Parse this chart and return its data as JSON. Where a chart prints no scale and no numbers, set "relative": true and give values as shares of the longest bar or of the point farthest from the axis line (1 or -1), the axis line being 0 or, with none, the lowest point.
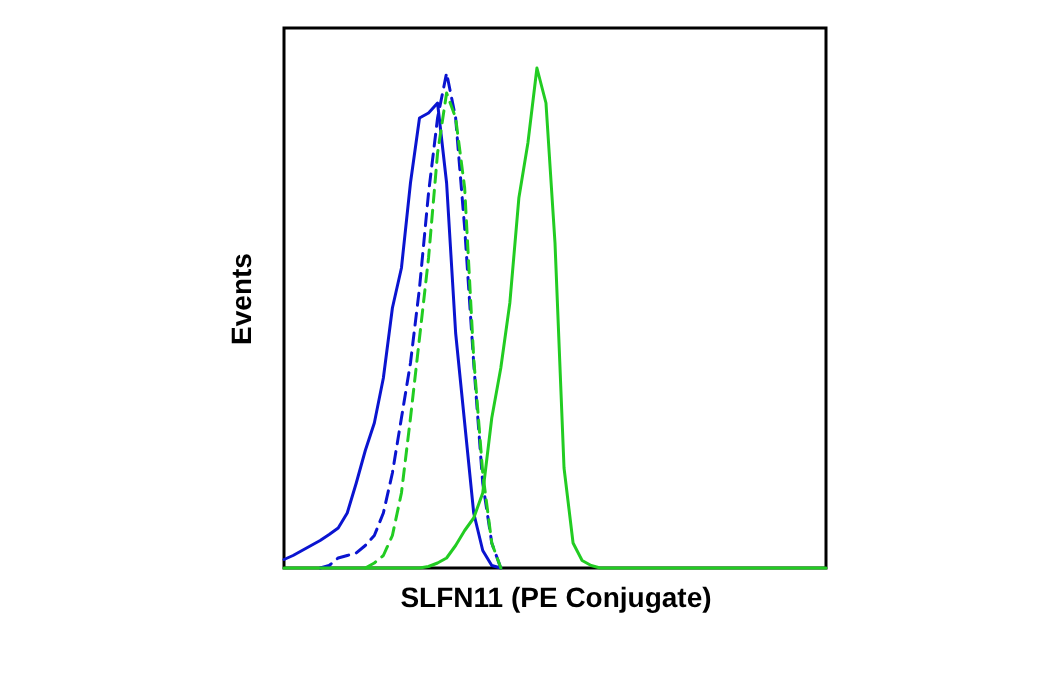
{
  "chart_data": {
    "type": "line",
    "relative": true,
    "xlabel": "SLFN11 (PE Conjugate)",
    "ylabel": "Events",
    "grid": false,
    "tick_labels": false,
    "marker": "none",
    "categories": [
      null,
      null,
      null,
      null,
      null,
      null,
      null,
      null,
      null,
      null,
      null,
      null,
      null,
      null,
      null,
      null,
      null,
      null,
      null,
      null,
      null,
      null,
      null,
      null,
      null,
      null,
      null,
      null,
      null,
      null,
      null,
      null,
      null,
      null,
      null,
      null,
      null,
      null,
      null,
      null,
      null,
      null,
      null,
      null,
      null,
      null,
      null,
      null,
      null,
      null,
      null,
      null,
      null,
      null,
      null,
      null,
      null,
      null,
      null,
      null,
      null
    ],
    "series": [
      {
        "color": "#0a14d0",
        "line_style": "solid",
        "values": [
          0.017,
          0.025,
          0.035,
          0.045,
          0.055,
          0.067,
          0.08,
          0.11,
          0.17,
          0.235,
          0.29,
          0.38,
          0.52,
          0.6,
          0.77,
          0.9,
          0.91,
          0.93,
          0.77,
          0.47,
          0.29,
          0.11,
          0.035,
          0.005,
          0,
          null,
          null,
          null,
          null,
          null,
          null,
          null,
          null,
          null,
          null,
          null,
          null,
          null,
          null,
          null,
          null,
          null,
          null,
          null,
          null,
          null,
          null,
          null,
          null,
          null,
          null,
          null,
          null,
          null,
          null,
          null,
          null,
          null,
          null,
          null,
          null
        ]
      },
      {
        "color": "#0a14d0",
        "line_style": "dashed",
        "values": [
          null,
          null,
          null,
          null,
          0,
          0.005,
          0.02,
          0.025,
          0.03,
          0.045,
          0.065,
          0.11,
          0.19,
          0.3,
          0.41,
          0.56,
          0.75,
          0.9,
          0.99,
          0.9,
          0.68,
          0.41,
          0.17,
          0.05,
          0,
          null,
          null,
          null,
          null,
          null,
          null,
          null,
          null,
          null,
          null,
          null,
          null,
          null,
          null,
          null,
          null,
          null,
          null,
          null,
          null,
          null,
          null,
          null,
          null,
          null,
          null,
          null,
          null,
          null,
          null,
          null,
          null,
          null,
          null,
          null,
          null
        ]
      },
      {
        "color": "#22cc22",
        "line_style": "dashed",
        "values": [
          null,
          null,
          null,
          null,
          null,
          null,
          null,
          null,
          null,
          0,
          0.01,
          0.025,
          0.065,
          0.15,
          0.3,
          0.46,
          0.62,
          0.83,
          0.95,
          0.9,
          0.76,
          0.42,
          0.19,
          0.05,
          0,
          null,
          null,
          null,
          null,
          null,
          null,
          null,
          null,
          null,
          null,
          null,
          null,
          null,
          null,
          null,
          null,
          null,
          null,
          null,
          null,
          null,
          null,
          null,
          null,
          null,
          null,
          null,
          null,
          null,
          null,
          null,
          null,
          null,
          null,
          null,
          null
        ]
      },
      {
        "color": "#22cc22",
        "line_style": "solid",
        "values": [
          0,
          0,
          0,
          0,
          0,
          0,
          0,
          0,
          0,
          0,
          0,
          0,
          0,
          0,
          0,
          0,
          0.003,
          0.01,
          0.02,
          0.045,
          0.075,
          0.1,
          0.15,
          0.3,
          0.4,
          0.53,
          0.74,
          0.85,
          1,
          0.93,
          0.65,
          0.2,
          0.05,
          0.015,
          0.005,
          0,
          0,
          0,
          0,
          0,
          0,
          0,
          0,
          0,
          0,
          0,
          0,
          0,
          0,
          0,
          0,
          0,
          0,
          0,
          0,
          0,
          0,
          0,
          0,
          0,
          0
        ]
      }
    ]
  }
}
